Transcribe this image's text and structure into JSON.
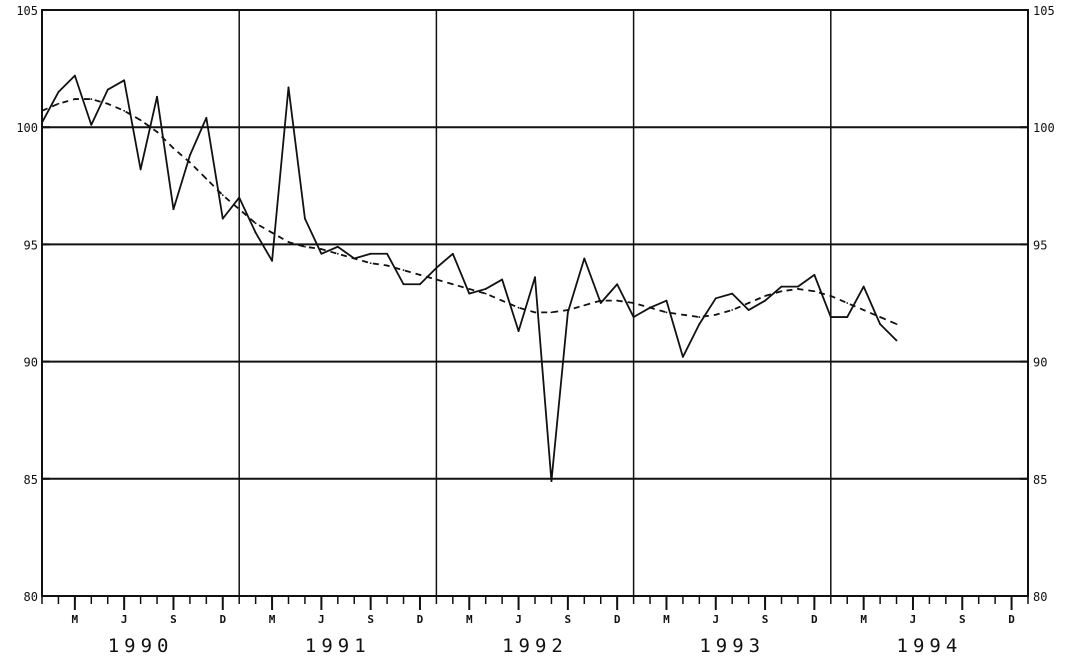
{
  "chart_data": {
    "type": "line",
    "title": "",
    "xlabel": "",
    "ylabel": "",
    "ylim": [
      80,
      105
    ],
    "y_ticks": [
      80,
      85,
      90,
      95,
      100,
      105
    ],
    "y_tick_labels_left": [
      "80",
      "85",
      "90",
      "95",
      "100",
      "105"
    ],
    "y_tick_labels_right": [
      "80",
      "85",
      "90",
      "95",
      "100",
      "105"
    ],
    "horizontal_gridlines": [
      85,
      90,
      95,
      100
    ],
    "grid": true,
    "x_month_ticks": [
      "M",
      "J",
      "S",
      "D",
      "M",
      "J",
      "S",
      "D",
      "M",
      "J",
      "S",
      "D",
      "M",
      "J",
      "S",
      "D",
      "M",
      "J",
      "S",
      "D"
    ],
    "year_labels": [
      "1990",
      "1991",
      "1992",
      "1993",
      "1994"
    ],
    "year_dividers_after": [
      "1990",
      "1991",
      "1992",
      "1993"
    ],
    "series": [
      {
        "style": "solid",
        "color": "#111111",
        "values": [
          100.2,
          101.5,
          102.2,
          100.1,
          101.6,
          102.0,
          98.2,
          101.3,
          96.5,
          98.8,
          100.4,
          96.1,
          97.0,
          95.5,
          94.3,
          101.7,
          96.1,
          94.6,
          94.9,
          94.4,
          94.6,
          94.6,
          93.3,
          93.3,
          94.0,
          94.6,
          92.9,
          93.1,
          93.5,
          91.3,
          93.6,
          84.9,
          92.1,
          94.4,
          92.5,
          93.3,
          91.9,
          92.3,
          92.6,
          90.2,
          91.6,
          92.7,
          92.9,
          92.2,
          92.6,
          93.2,
          93.2,
          93.7,
          91.9,
          91.9,
          93.2,
          91.6,
          90.9
        ]
      },
      {
        "style": "dashed",
        "color": "#111111",
        "values": [
          100.7,
          101.0,
          101.2,
          101.2,
          101.0,
          100.7,
          100.3,
          99.8,
          99.1,
          98.5,
          97.8,
          97.1,
          96.5,
          95.9,
          95.5,
          95.1,
          94.9,
          94.8,
          94.6,
          94.4,
          94.2,
          94.1,
          93.9,
          93.7,
          93.5,
          93.3,
          93.1,
          92.9,
          92.6,
          92.3,
          92.1,
          92.1,
          92.2,
          92.4,
          92.6,
          92.6,
          92.5,
          92.3,
          92.1,
          92.0,
          91.9,
          92.0,
          92.2,
          92.5,
          92.8,
          93.0,
          93.1,
          93.0,
          92.8,
          92.5,
          92.2,
          91.9,
          91.6
        ]
      }
    ],
    "x_months_per_year": 12,
    "x_start_month": 1
  }
}
